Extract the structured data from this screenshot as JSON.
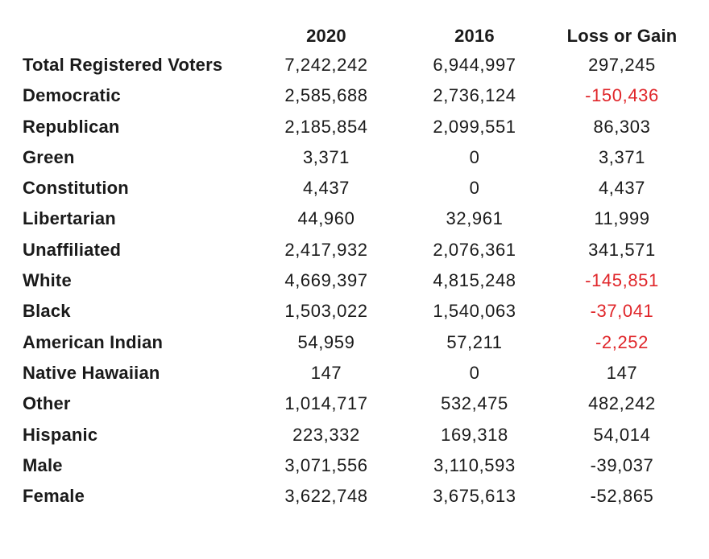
{
  "table": {
    "headers": [
      "",
      "2020",
      "2016",
      "Loss or Gain"
    ],
    "rows": [
      {
        "label": "Total Registered Voters",
        "y2020": "7,242,242",
        "y2016": "6,944,997",
        "diff": "297,245",
        "diff_red": false
      },
      {
        "label": "Democratic",
        "y2020": "2,585,688",
        "y2016": "2,736,124",
        "diff": "-150,436",
        "diff_red": true
      },
      {
        "label": "Republican",
        "y2020": "2,185,854",
        "y2016": "2,099,551",
        "diff": "86,303",
        "diff_red": false
      },
      {
        "label": "Green",
        "y2020": "3,371",
        "y2016": "0",
        "diff": "3,371",
        "diff_red": false
      },
      {
        "label": "Constitution",
        "y2020": "4,437",
        "y2016": "0",
        "diff": "4,437",
        "diff_red": false
      },
      {
        "label": "Libertarian",
        "y2020": "44,960",
        "y2016": "32,961",
        "diff": "11,999",
        "diff_red": false
      },
      {
        "label": "Unaffiliated",
        "y2020": "2,417,932",
        "y2016": "2,076,361",
        "diff": "341,571",
        "diff_red": false
      },
      {
        "label": "White",
        "y2020": "4,669,397",
        "y2016": "4,815,248",
        "diff": "-145,851",
        "diff_red": true
      },
      {
        "label": "Black",
        "y2020": "1,503,022",
        "y2016": "1,540,063",
        "diff": "-37,041",
        "diff_red": true
      },
      {
        "label": "American Indian",
        "y2020": "54,959",
        "y2016": "57,211",
        "diff": "-2,252",
        "diff_red": true
      },
      {
        "label": "Native Hawaiian",
        "y2020": "147",
        "y2016": "0",
        "diff": "147",
        "diff_red": false
      },
      {
        "label": "Other",
        "y2020": "1,014,717",
        "y2016": "532,475",
        "diff": "482,242",
        "diff_red": false
      },
      {
        "label": "Hispanic",
        "y2020": "223,332",
        "y2016": "169,318",
        "diff": "54,014",
        "diff_red": false
      },
      {
        "label": "Male",
        "y2020": "3,071,556",
        "y2016": "3,110,593",
        "diff": "-39,037",
        "diff_red": false
      },
      {
        "label": "Female",
        "y2020": "3,622,748",
        "y2016": "3,675,613",
        "diff": "-52,865",
        "diff_red": false
      }
    ]
  },
  "colors": {
    "text": "#1a1a1a",
    "negative_highlight": "#e0262a",
    "background": "#ffffff"
  }
}
